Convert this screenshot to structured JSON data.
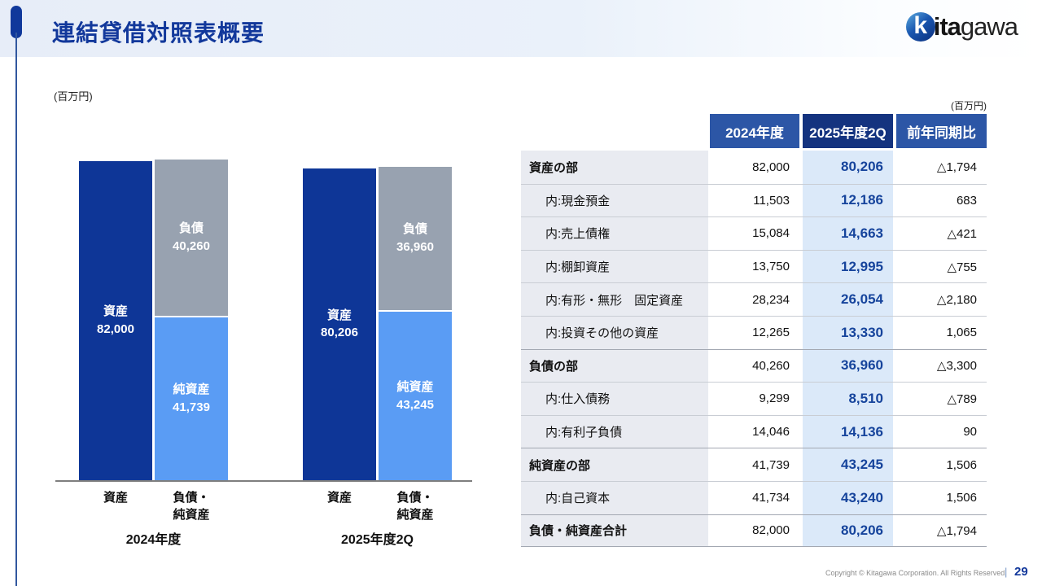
{
  "slide": {
    "title": "連結貸借対照表概要",
    "copyright": "Copyright © Kitagawa Corporation. All Rights Reserved.",
    "page_separator": "|",
    "page_number": "29"
  },
  "logo": {
    "mark": "k",
    "text_bold": "ita",
    "text_light": "gawa"
  },
  "colors": {
    "accent_blue": "#12389B",
    "asset_bar": "#0E3697",
    "liability_bar": "#98A2B0",
    "equity_bar": "#5A9CF4",
    "highlight_column_bg": "#DBE9F9",
    "highlight_value_text": "#16449C",
    "header_cell_blue": "#2C56A6",
    "header_cell_navy": "#14337F"
  },
  "chart": {
    "unit_label": "(百万円)",
    "axis_max": 82000,
    "groups": [
      {
        "period_label": "2024年度",
        "bars": [
          {
            "axis_label_line1": "資産",
            "axis_label_line2": "",
            "segments": [
              {
                "name": "資産",
                "value": 82000,
                "value_label": "82,000",
                "color": "#0E3697"
              }
            ]
          },
          {
            "axis_label_line1": "負債・",
            "axis_label_line2": "純資産",
            "segments": [
              {
                "name": "負債",
                "value": 40260,
                "value_label": "40,260",
                "color": "#98A2B0"
              },
              {
                "name": "純資産",
                "value": 41739,
                "value_label": "41,739",
                "color": "#5A9CF4"
              }
            ]
          }
        ]
      },
      {
        "period_label": "2025年度2Q",
        "bars": [
          {
            "axis_label_line1": "資産",
            "axis_label_line2": "",
            "segments": [
              {
                "name": "資産",
                "value": 80206,
                "value_label": "80,206",
                "color": "#0E3697"
              }
            ]
          },
          {
            "axis_label_line1": "負債・",
            "axis_label_line2": "純資産",
            "segments": [
              {
                "name": "負債",
                "value": 36960,
                "value_label": "36,960",
                "color": "#98A2B0"
              },
              {
                "name": "純資産",
                "value": 43245,
                "value_label": "43,245",
                "color": "#5A9CF4"
              }
            ]
          }
        ]
      }
    ]
  },
  "chart_data": {
    "type": "bar",
    "stacked": true,
    "unit": "百万円",
    "title": "連結貸借対照表概要",
    "categories": [
      "2024年度 資産",
      "2024年度 負債・純資産",
      "2025年度2Q 資産",
      "2025年度2Q 負債・純資産"
    ],
    "series": [
      {
        "name": "資産",
        "values": [
          82000,
          null,
          80206,
          null
        ]
      },
      {
        "name": "負債",
        "values": [
          null,
          40260,
          null,
          36960
        ]
      },
      {
        "name": "純資産",
        "values": [
          null,
          41739,
          null,
          43245
        ]
      }
    ],
    "ylim": [
      0,
      82000
    ],
    "grid": false,
    "legend_position": "none"
  },
  "table": {
    "unit_label": "(百万円)",
    "columns": [
      "2024年度",
      "2025年度2Q",
      "前年同期比"
    ],
    "rows": [
      {
        "label": "資産の部",
        "indent": false,
        "section": true,
        "values": [
          "82,000",
          "80,206",
          "△1,794"
        ]
      },
      {
        "label": "内:現金預金",
        "indent": true,
        "section": false,
        "values": [
          "11,503",
          "12,186",
          "683"
        ]
      },
      {
        "label": "内:売上債権",
        "indent": true,
        "section": false,
        "values": [
          "15,084",
          "14,663",
          "△421"
        ]
      },
      {
        "label": "内:棚卸資産",
        "indent": true,
        "section": false,
        "values": [
          "13,750",
          "12,995",
          "△755"
        ]
      },
      {
        "label": "内:有形・無形　固定資産",
        "indent": true,
        "section": false,
        "values": [
          "28,234",
          "26,054",
          "△2,180"
        ]
      },
      {
        "label": "内:投資その他の資産",
        "indent": true,
        "section": false,
        "values": [
          "12,265",
          "13,330",
          "1,065"
        ]
      },
      {
        "label": "負債の部",
        "indent": false,
        "section": true,
        "values": [
          "40,260",
          "36,960",
          "△3,300"
        ]
      },
      {
        "label": "内:仕入債務",
        "indent": true,
        "section": false,
        "values": [
          "9,299",
          "8,510",
          "△789"
        ]
      },
      {
        "label": "内:有利子負債",
        "indent": true,
        "section": false,
        "values": [
          "14,046",
          "14,136",
          "90"
        ]
      },
      {
        "label": "純資産の部",
        "indent": false,
        "section": true,
        "values": [
          "41,739",
          "43,245",
          "1,506"
        ]
      },
      {
        "label": "内:自己資本",
        "indent": true,
        "section": false,
        "values": [
          "41,734",
          "43,240",
          "1,506"
        ]
      },
      {
        "label": "負債・純資産合計",
        "indent": false,
        "section": true,
        "values": [
          "82,000",
          "80,206",
          "△1,794"
        ]
      }
    ]
  }
}
